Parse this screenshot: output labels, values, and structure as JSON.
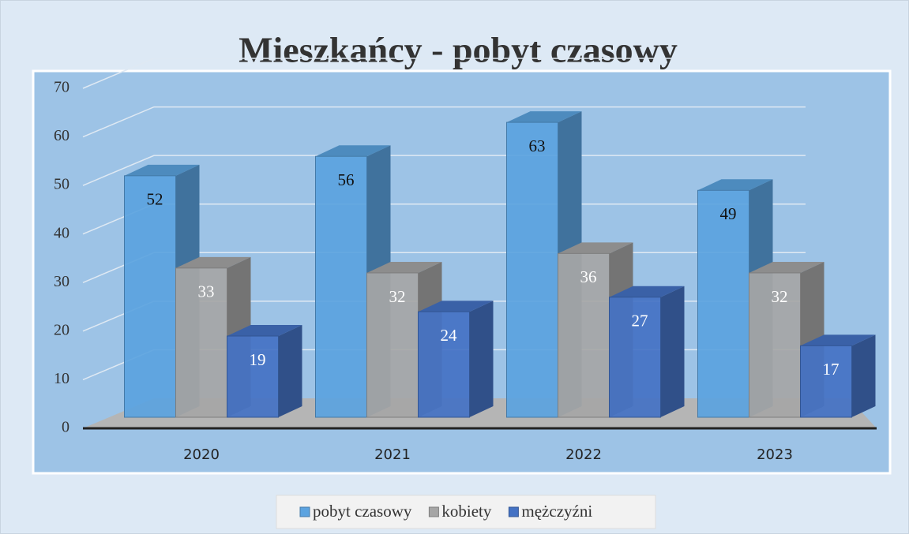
{
  "chart_data": {
    "type": "bar3d",
    "title": "Mieszkańcy - pobyt czasowy",
    "categories": [
      "2020",
      "2021",
      "2022",
      "2023"
    ],
    "series": [
      {
        "name": "pobyt czasowy",
        "color": "#5ba3e0",
        "values": [
          52,
          56,
          63,
          49
        ]
      },
      {
        "name": "kobiety",
        "color": "#a6a6a6",
        "values": [
          33,
          32,
          36,
          32
        ]
      },
      {
        "name": "mężczyźni",
        "color": "#4472c4",
        "values": [
          19,
          24,
          27,
          17
        ]
      }
    ],
    "ylim": [
      0,
      70
    ],
    "yticks": [
      0,
      10,
      20,
      30,
      40,
      50,
      60,
      70
    ],
    "grid": true,
    "legend": "bottom"
  }
}
